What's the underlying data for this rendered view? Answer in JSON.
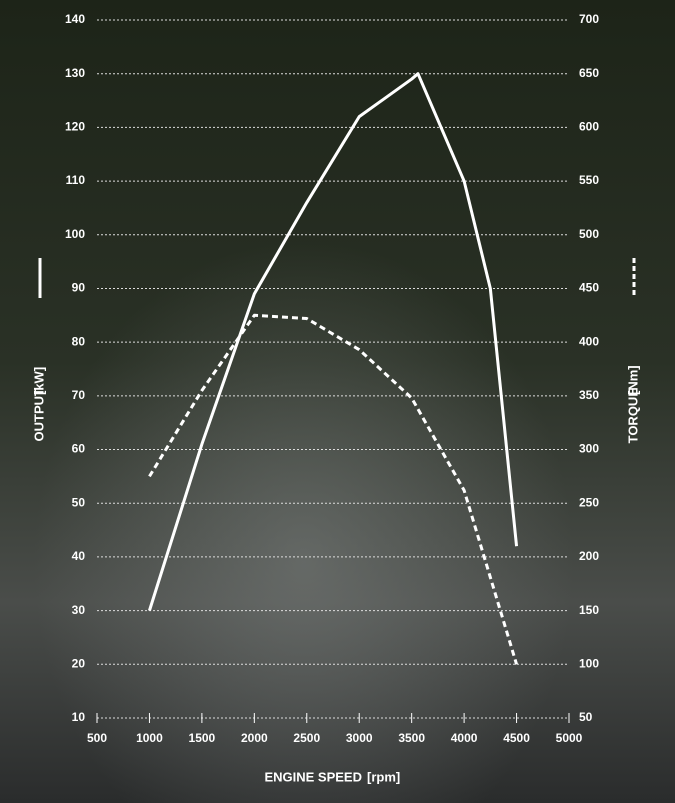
{
  "chart_data": {
    "type": "line",
    "x": [
      1000,
      1500,
      2000,
      2500,
      3000,
      3500,
      3560,
      4000,
      4250,
      4500
    ],
    "xlabel": "ENGINE SPEED",
    "xunit": "[rpm]",
    "ylabel": "OUTPUT",
    "yunit": "[kW]",
    "y2label": "TORQUE",
    "y2unit": "[Nm]",
    "xlim": [
      500,
      5000
    ],
    "xticks": [
      500,
      1000,
      1500,
      2000,
      2500,
      3000,
      3500,
      4000,
      4500,
      5000
    ],
    "ylim": [
      10,
      140
    ],
    "yticks": [
      10,
      20,
      30,
      40,
      50,
      60,
      70,
      80,
      90,
      100,
      110,
      120,
      130,
      140
    ],
    "y2lim": [
      50,
      700
    ],
    "y2ticks": [
      50,
      100,
      150,
      200,
      250,
      300,
      350,
      400,
      450,
      500,
      550,
      600,
      650,
      700
    ],
    "grid": true,
    "series": [
      {
        "color": "#ffffff",
        "dash": "solid",
        "values": [
          30,
          61,
          89,
          106,
          122,
          129,
          130,
          110,
          90,
          42
        ]
      },
      {
        "color": "#ffffff",
        "dash": "dashed",
        "axis": "y2",
        "values": [
          275,
          355,
          425,
          422,
          393,
          348,
          null,
          262,
          null,
          100
        ]
      }
    ]
  }
}
